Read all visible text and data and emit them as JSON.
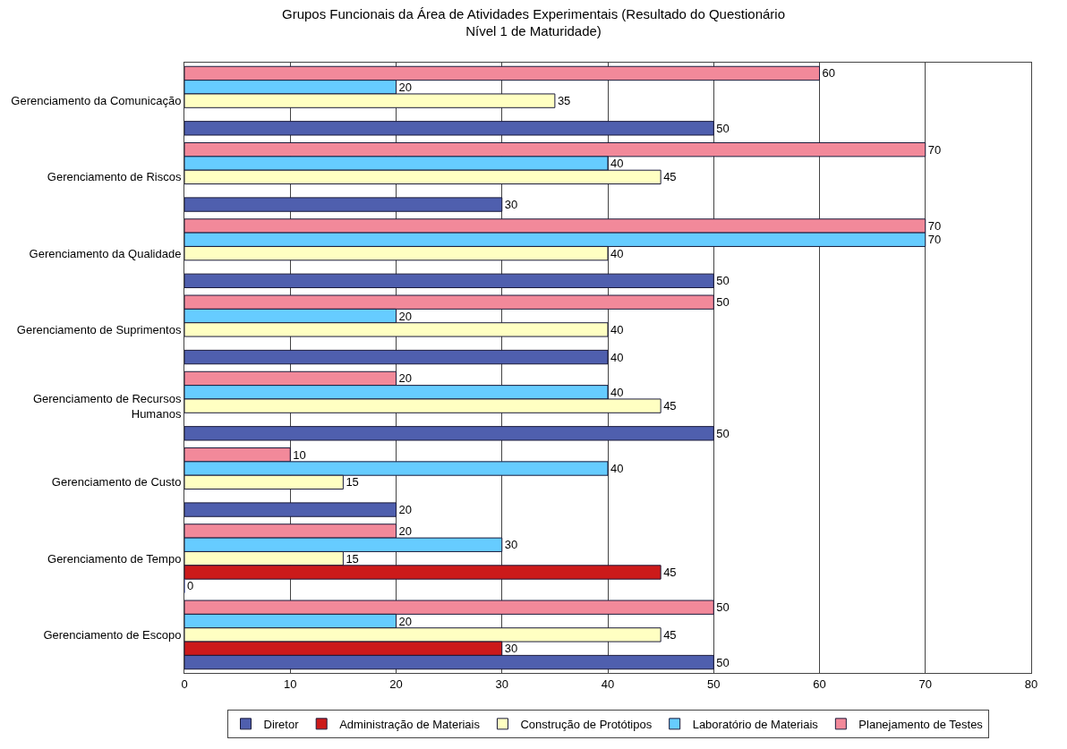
{
  "chart_data": {
    "type": "bar",
    "orientation": "horizontal",
    "title": "Grupos Funcionais da Área de Atividades Experimentais (Resultado do Questionário Nível 1 de Maturidade)",
    "categories": [
      "Gerenciamento da Comunicação",
      "Gerenciamento de Riscos",
      "Gerenciamento da Qualidade",
      "Gerenciamento de Suprimentos",
      "Gerenciamento de Recursos Humanos",
      "Gerenciamento de Custo",
      "Gerenciamento de Tempo",
      "Gerenciamento de Escopo"
    ],
    "series": [
      {
        "name": "Diretor",
        "color": "#4f5fae",
        "values": [
          50,
          30,
          50,
          40,
          50,
          20,
          0,
          50
        ]
      },
      {
        "name": "Administração de Materiais",
        "color": "#cc1a1a",
        "values": [
          null,
          null,
          null,
          null,
          null,
          null,
          45,
          30
        ]
      },
      {
        "name": "Construção de Protótipos",
        "color": "#ffffc2",
        "values": [
          35,
          45,
          40,
          40,
          45,
          15,
          15,
          45
        ]
      },
      {
        "name": "Laboratório de Materiais",
        "color": "#66ccff",
        "values": [
          20,
          40,
          70,
          20,
          40,
          40,
          30,
          20
        ]
      },
      {
        "name": "Planejamento de Testes",
        "color": "#f2899a",
        "values": [
          60,
          70,
          70,
          50,
          20,
          10,
          20,
          50
        ]
      }
    ],
    "xlim": [
      0,
      80
    ],
    "xticks": [
      0,
      10,
      20,
      30,
      40,
      50,
      60,
      70,
      80
    ],
    "grid": "x",
    "legend": "bottom",
    "data_labels": true
  }
}
